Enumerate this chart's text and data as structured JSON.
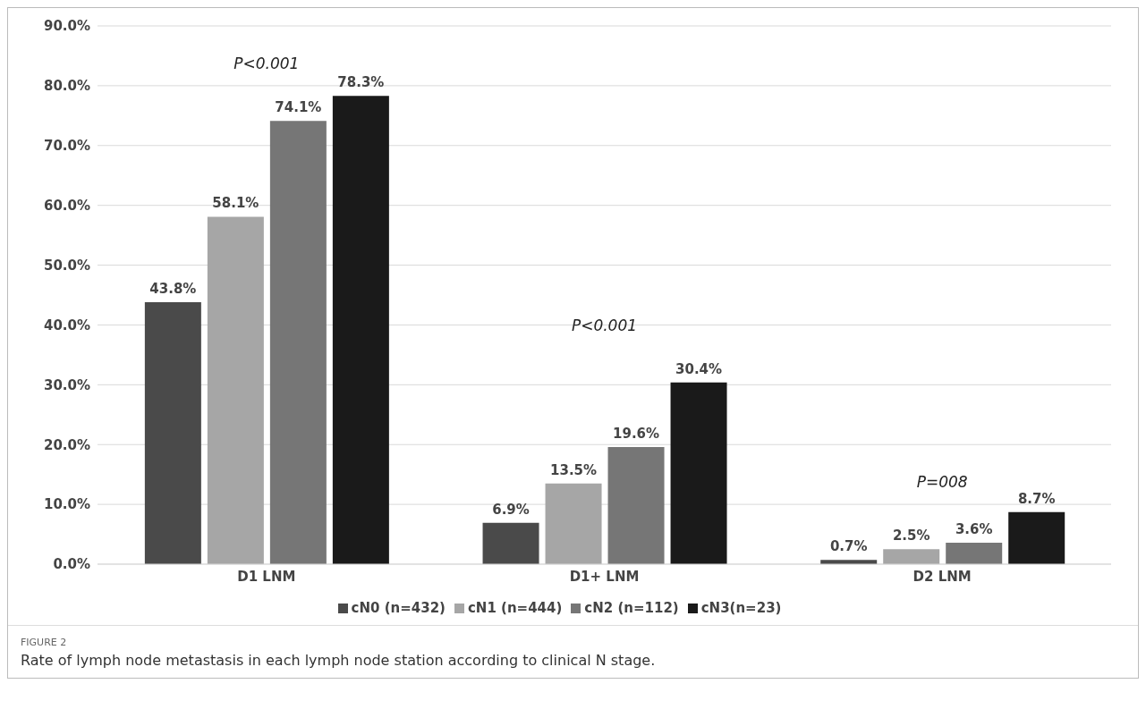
{
  "chart_data": {
    "type": "bar",
    "categories": [
      "D1 LNM",
      "D1+ LNM",
      "D2 LNM"
    ],
    "series": [
      {
        "name": "cN0 (n=432)",
        "color": "#4a4a4a",
        "values": [
          43.8,
          6.9,
          0.7
        ],
        "value_labels": [
          "43.8%",
          "6.9%",
          "0.7%"
        ]
      },
      {
        "name": "cN1 (n=444)",
        "color": "#a6a6a6",
        "values": [
          58.1,
          13.5,
          2.5
        ],
        "value_labels": [
          "58.1%",
          "13.5%",
          "2.5%"
        ]
      },
      {
        "name": "cN2 (n=112)",
        "color": "#767676",
        "values": [
          74.1,
          19.6,
          3.6
        ],
        "value_labels": [
          "74.1%",
          "19.6%",
          "3.6%"
        ]
      },
      {
        "name": "cN3(n=23)",
        "color": "#1a1a1a",
        "values": [
          78.3,
          30.4,
          8.7
        ],
        "value_labels": [
          "78.3%",
          "30.4%",
          "8.7%"
        ]
      }
    ],
    "ylim": [
      0,
      90
    ],
    "yticks": [
      {
        "value": 0,
        "label": "0.0%"
      },
      {
        "value": 10,
        "label": "10.0%"
      },
      {
        "value": 20,
        "label": "20.0%"
      },
      {
        "value": 30,
        "label": "30.0%"
      },
      {
        "value": 40,
        "label": "40.0%"
      },
      {
        "value": 50,
        "label": "50.0%"
      },
      {
        "value": 60,
        "label": "60.0%"
      },
      {
        "value": 70,
        "label": "70.0%"
      },
      {
        "value": 80,
        "label": "80.0%"
      },
      {
        "value": 90,
        "label": "90.0%"
      }
    ],
    "grid": "y",
    "legend": "bottom",
    "annotations": [
      "P<0.001",
      "P<0.001",
      "P=008",
      "FIGURE 2",
      "Rate of lymph node metastasis in each lymph node station according to clinical N stage."
    ]
  }
}
